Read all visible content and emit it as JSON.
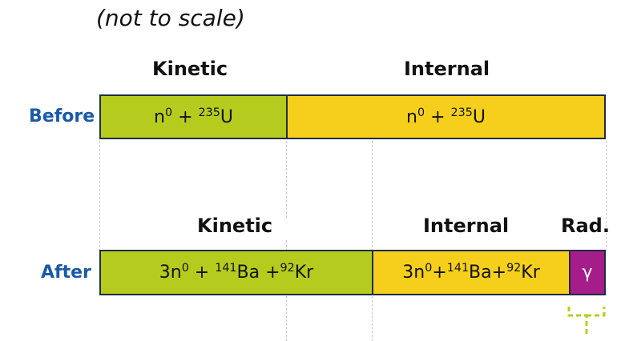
{
  "note": "(not to scale)",
  "before": {
    "row_label": "Before",
    "headers": {
      "kinetic": "Kinetic",
      "internal": "Internal"
    },
    "kinetic": {
      "n": "n",
      "n_sup": "0",
      "plus": " + ",
      "u_sup": "235",
      "u": "U"
    },
    "internal": {
      "n": "n",
      "n_sup": "0",
      "plus": " + ",
      "u_sup": "235",
      "u": "U"
    }
  },
  "after": {
    "row_label": "After",
    "headers": {
      "kinetic": "Kinetic",
      "internal": "Internal",
      "radiation": "Rad."
    },
    "kinetic": {
      "n": "3n",
      "n_sup": "0",
      "plus1": " + ",
      "ba_sup": "141",
      "ba": "Ba",
      "plus2": " +",
      "kr_sup": "92",
      "kr": "Kr"
    },
    "internal": {
      "n": "3n",
      "n_sup": "0",
      "plus1": "+",
      "ba_sup": "141",
      "ba": "Ba",
      "plus2": "+",
      "kr_sup": "92",
      "kr": "Kr"
    },
    "radiation": "γ"
  },
  "colors": {
    "kinetic": "#b5cc1f",
    "internal": "#f6cf1c",
    "radiation": "#a51d8a",
    "row_label": "#1a5aa6"
  }
}
